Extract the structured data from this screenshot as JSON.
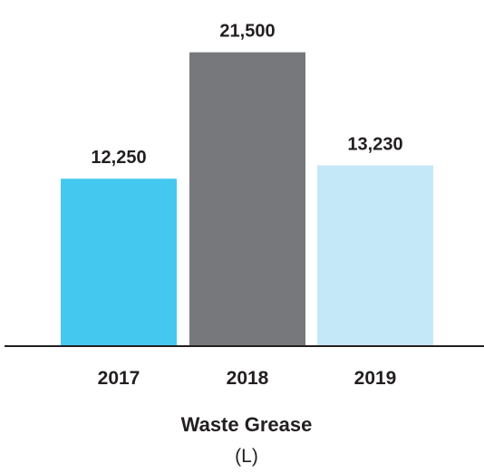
{
  "chart_data": {
    "type": "bar",
    "title": "Waste Grease",
    "subtitle": "(L)",
    "categories": [
      "2017",
      "2018",
      "2019"
    ],
    "values": [
      12250,
      21500,
      13230
    ],
    "value_labels": [
      "12,250",
      "21,500",
      "13,230"
    ],
    "colors": [
      "#45c8ef",
      "#77787b",
      "#c5e8f8"
    ],
    "axis_color": "#231f20",
    "ylim": [
      0,
      24000
    ],
    "grid": false,
    "legend": "none"
  }
}
